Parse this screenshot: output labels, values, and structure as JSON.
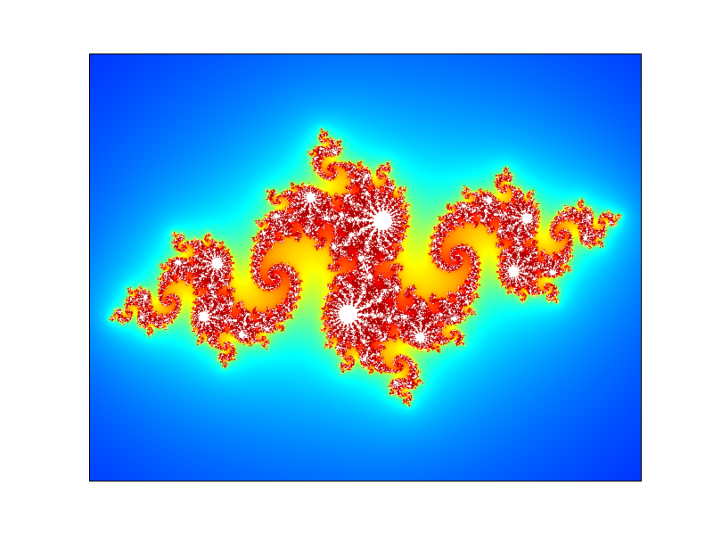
{
  "figure": {
    "background": "#ffffff"
  },
  "image": {
    "subject": "julia-set-fractal",
    "colormap": "jet",
    "colors": {
      "escape_far": "#00007f",
      "escape_mid": "#00bfff",
      "escape_near": "#ff2000",
      "interior": "#ffffff",
      "frame": "#000000"
    }
  }
}
